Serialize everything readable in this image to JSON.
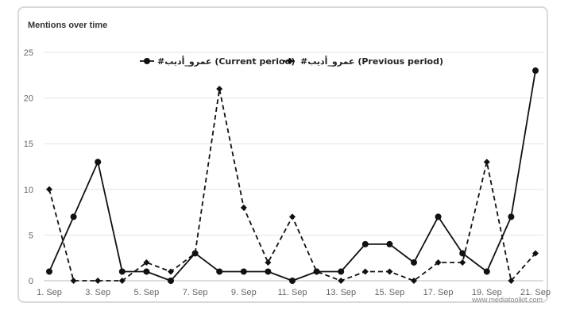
{
  "chart_data": {
    "type": "line",
    "title": "Mentions over time",
    "x": [
      "1. Sep",
      "2. Sep",
      "3. Sep",
      "4. Sep",
      "5. Sep",
      "6. Sep",
      "7. Sep",
      "8. Sep",
      "9. Sep",
      "10. Sep",
      "11. Sep",
      "12. Sep",
      "13. Sep",
      "14. Sep",
      "15. Sep",
      "16. Sep",
      "17. Sep",
      "18. Sep",
      "19. Sep",
      "20. Sep",
      "21. Sep"
    ],
    "x_tick_labels": [
      "1. Sep",
      "3. Sep",
      "5. Sep",
      "7. Sep",
      "9. Sep",
      "11. Sep",
      "13. Sep",
      "15. Sep",
      "17. Sep",
      "19. Sep",
      "21. Sep"
    ],
    "y_ticks": [
      0,
      5,
      10,
      15,
      20,
      25
    ],
    "ylim": [
      0,
      25
    ],
    "grid": true,
    "legend_position": "top",
    "series": [
      {
        "name": "#عمرو_أديب (Current period)",
        "style": "solid",
        "marker": "circle",
        "color": "#111111",
        "values": [
          1,
          7,
          13,
          1,
          1,
          0,
          3,
          1,
          1,
          1,
          0,
          1,
          1,
          4,
          4,
          2,
          7,
          3,
          1,
          7,
          23
        ]
      },
      {
        "name": "#عمرو_أديب (Previous period)",
        "style": "dashed",
        "marker": "diamond",
        "color": "#111111",
        "values": [
          10,
          0,
          0,
          0,
          2,
          1,
          3,
          21,
          8,
          2,
          7,
          1,
          0,
          1,
          1,
          0,
          2,
          2,
          13,
          0,
          3
        ]
      }
    ],
    "credit": "www.mediatoolkit.com"
  }
}
